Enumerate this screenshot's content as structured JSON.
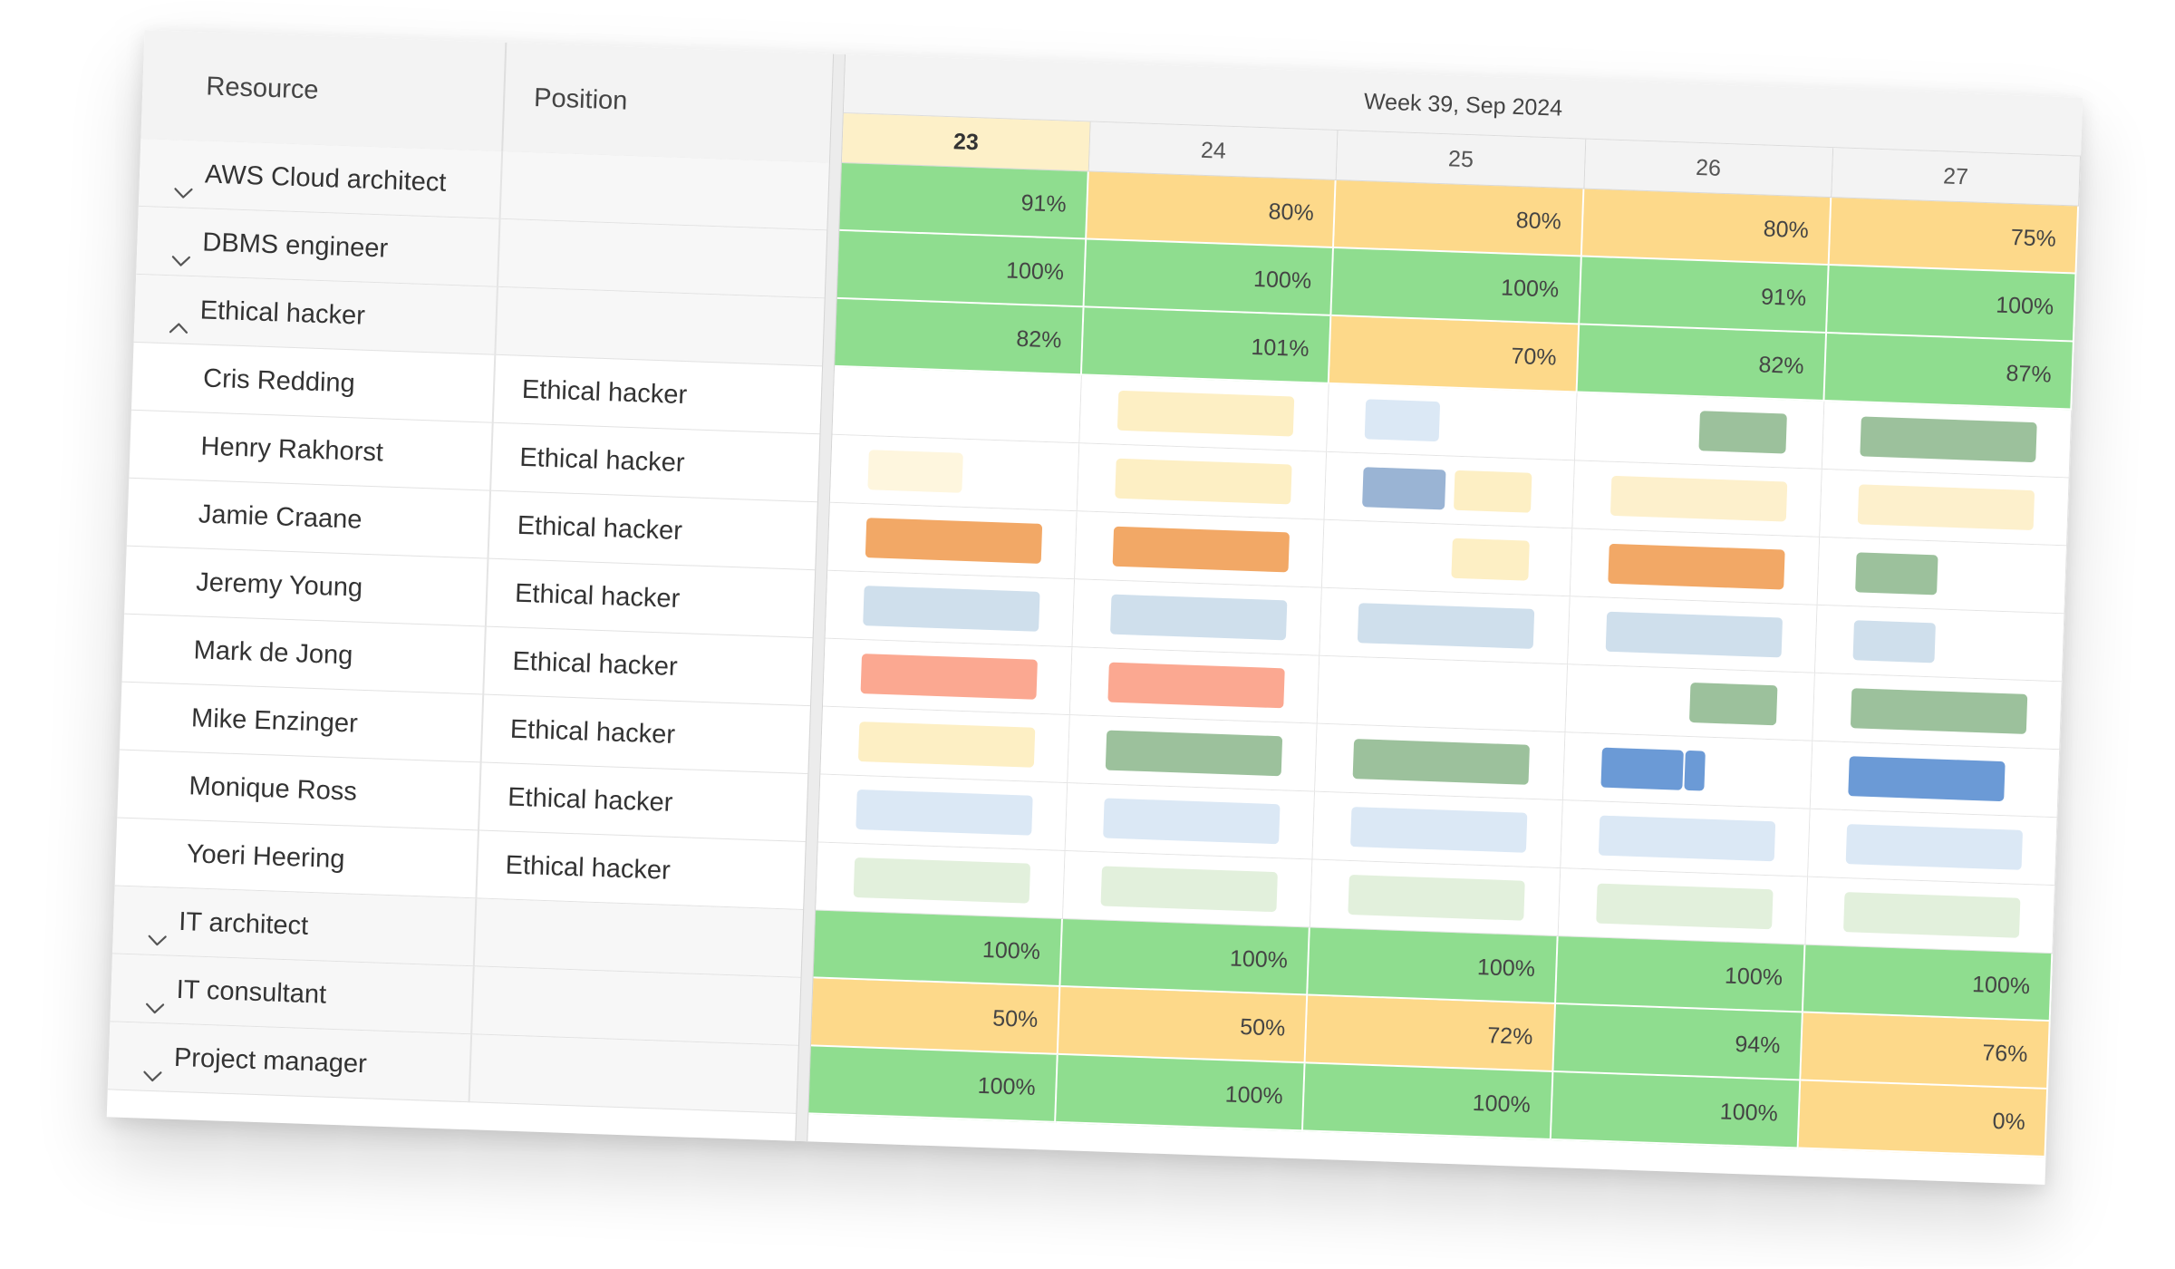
{
  "headers": {
    "resource": "Resource",
    "position": "Position",
    "week": "Week 39, Sep 2024"
  },
  "days": [
    "23",
    "24",
    "25",
    "26",
    "27"
  ],
  "today_index": 0,
  "colors": {
    "green": "#8fdd8f",
    "orange": "#fdd98a",
    "event": {
      "cream": "#fdefc4",
      "cream-light": "#fef6de",
      "sand": "#fdf0cc",
      "orange": "#f2a866",
      "salmon": "#fba891",
      "sage": "#9cc19c",
      "blue": "#6b9ad6",
      "blue-muted": "#9ab4d4",
      "blue-light": "#cfdfec",
      "blue-pale": "#dbe8f5",
      "green-pale": "#e2f0dc"
    }
  },
  "rows": [
    {
      "type": "group",
      "label": "AWS Cloud architect",
      "expanded": false,
      "values": [
        "91%",
        "80%",
        "80%",
        "80%",
        "75%"
      ],
      "status": [
        "green",
        "orange",
        "orange",
        "orange",
        "orange"
      ]
    },
    {
      "type": "group",
      "label": "DBMS engineer",
      "expanded": false,
      "values": [
        "100%",
        "100%",
        "100%",
        "91%",
        "100%"
      ],
      "status": [
        "green",
        "green",
        "green",
        "green",
        "green"
      ]
    },
    {
      "type": "group",
      "label": "Ethical hacker",
      "expanded": true,
      "values": [
        "82%",
        "101%",
        "70%",
        "82%",
        "87%"
      ],
      "status": [
        "green",
        "green",
        "orange",
        "green",
        "green"
      ]
    },
    {
      "type": "resource",
      "label": "Cris Redding",
      "position": "Ethical hacker",
      "events": [
        {
          "day": 1,
          "start": 0.15,
          "end": 0.86,
          "color": "cream"
        },
        {
          "day": 2,
          "start": 0.15,
          "end": 0.45,
          "color": "blue-pale"
        },
        {
          "day": 3,
          "start": 0.5,
          "end": 0.85,
          "color": "sage"
        },
        {
          "day": 4,
          "start": 0.15,
          "end": 0.86,
          "color": "sage"
        }
      ]
    },
    {
      "type": "resource",
      "label": "Henry Rakhorst",
      "position": "Ethical hacker",
      "events": [
        {
          "day": 0,
          "start": 0.15,
          "end": 0.53,
          "color": "cream-light"
        },
        {
          "day": 1,
          "start": 0.15,
          "end": 0.86,
          "color": "cream"
        },
        {
          "day": 2,
          "start": 0.15,
          "end": 0.48,
          "color": "blue-muted"
        },
        {
          "day": 2,
          "start": 0.52,
          "end": 0.83,
          "color": "cream"
        },
        {
          "day": 3,
          "start": 0.15,
          "end": 0.86,
          "color": "sand"
        },
        {
          "day": 4,
          "start": 0.15,
          "end": 0.86,
          "color": "sand"
        }
      ]
    },
    {
      "type": "resource",
      "label": "Jamie Craane",
      "position": "Ethical hacker",
      "events": [
        {
          "day": 0,
          "start": 0.15,
          "end": 0.86,
          "color": "orange"
        },
        {
          "day": 1,
          "start": 0.15,
          "end": 0.86,
          "color": "orange"
        },
        {
          "day": 2,
          "start": 0.52,
          "end": 0.83,
          "color": "cream"
        },
        {
          "day": 3,
          "start": 0.15,
          "end": 0.86,
          "color": "orange"
        },
        {
          "day": 4,
          "start": 0.15,
          "end": 0.48,
          "color": "sage"
        }
      ]
    },
    {
      "type": "resource",
      "label": "Jeremy Young",
      "position": "Ethical hacker",
      "events": [
        {
          "day": 0,
          "start": 0.15,
          "end": 0.86,
          "color": "blue-light"
        },
        {
          "day": 1,
          "start": 0.15,
          "end": 0.86,
          "color": "blue-light"
        },
        {
          "day": 2,
          "start": 0.15,
          "end": 0.86,
          "color": "blue-light"
        },
        {
          "day": 3,
          "start": 0.15,
          "end": 0.86,
          "color": "blue-light"
        },
        {
          "day": 4,
          "start": 0.15,
          "end": 0.48,
          "color": "blue-light"
        }
      ]
    },
    {
      "type": "resource",
      "label": "Mark de Jong",
      "position": "Ethical hacker",
      "events": [
        {
          "day": 0,
          "start": 0.15,
          "end": 0.86,
          "color": "salmon"
        },
        {
          "day": 1,
          "start": 0.15,
          "end": 0.86,
          "color": "salmon"
        },
        {
          "day": 3,
          "start": 0.5,
          "end": 0.85,
          "color": "sage"
        },
        {
          "day": 4,
          "start": 0.15,
          "end": 0.86,
          "color": "sage"
        }
      ]
    },
    {
      "type": "resource",
      "label": "Mike Enzinger",
      "position": "Ethical hacker",
      "events": [
        {
          "day": 0,
          "start": 0.15,
          "end": 0.86,
          "color": "cream"
        },
        {
          "day": 1,
          "start": 0.15,
          "end": 0.86,
          "color": "sage"
        },
        {
          "day": 2,
          "start": 0.15,
          "end": 0.86,
          "color": "sage"
        },
        {
          "day": 3,
          "start": 0.15,
          "end": 0.48,
          "color": "blue"
        },
        {
          "day": 3,
          "start": 0.49,
          "end": 0.57,
          "color": "blue"
        },
        {
          "day": 4,
          "start": 0.15,
          "end": 0.78,
          "color": "blue"
        }
      ]
    },
    {
      "type": "resource",
      "label": "Monique Ross",
      "position": "Ethical hacker",
      "events": [
        {
          "day": 0,
          "start": 0.15,
          "end": 0.86,
          "color": "blue-pale"
        },
        {
          "day": 1,
          "start": 0.15,
          "end": 0.86,
          "color": "blue-pale"
        },
        {
          "day": 2,
          "start": 0.15,
          "end": 0.86,
          "color": "blue-pale"
        },
        {
          "day": 3,
          "start": 0.15,
          "end": 0.86,
          "color": "blue-pale"
        },
        {
          "day": 4,
          "start": 0.15,
          "end": 0.86,
          "color": "blue-pale"
        }
      ]
    },
    {
      "type": "resource",
      "label": "Yoeri Heering",
      "position": "Ethical hacker",
      "events": [
        {
          "day": 0,
          "start": 0.15,
          "end": 0.86,
          "color": "green-pale"
        },
        {
          "day": 1,
          "start": 0.15,
          "end": 0.86,
          "color": "green-pale"
        },
        {
          "day": 2,
          "start": 0.15,
          "end": 0.86,
          "color": "green-pale"
        },
        {
          "day": 3,
          "start": 0.15,
          "end": 0.86,
          "color": "green-pale"
        },
        {
          "day": 4,
          "start": 0.15,
          "end": 0.86,
          "color": "green-pale"
        }
      ]
    },
    {
      "type": "group",
      "label": "IT architect",
      "expanded": false,
      "values": [
        "100%",
        "100%",
        "100%",
        "100%",
        "100%"
      ],
      "status": [
        "green",
        "green",
        "green",
        "green",
        "green"
      ]
    },
    {
      "type": "group",
      "label": "IT consultant",
      "expanded": false,
      "values": [
        "50%",
        "50%",
        "72%",
        "94%",
        "76%"
      ],
      "status": [
        "orange",
        "orange",
        "orange",
        "green",
        "orange"
      ]
    },
    {
      "type": "group",
      "label": "Project manager",
      "expanded": false,
      "values": [
        "100%",
        "100%",
        "100%",
        "100%",
        "0%"
      ],
      "status": [
        "green",
        "green",
        "green",
        "green",
        "orange"
      ]
    }
  ]
}
